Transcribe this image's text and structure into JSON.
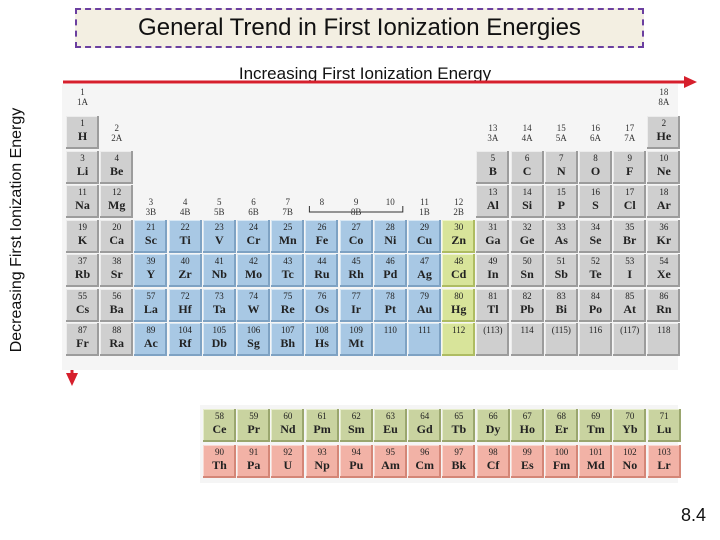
{
  "title": "General Trend in First Ionization Energies",
  "top_label": "Increasing First Ionization Energy",
  "left_label": "Decreasing First Ionization Energy",
  "page_number": "8.4",
  "group_labels": [
    {
      "num": "1",
      "sub": "1A"
    },
    {
      "num": "2",
      "sub": "2A"
    },
    {
      "num": "3",
      "sub": "3B"
    },
    {
      "num": "4",
      "sub": "4B"
    },
    {
      "num": "5",
      "sub": "5B"
    },
    {
      "num": "6",
      "sub": "6B"
    },
    {
      "num": "7",
      "sub": "7B"
    },
    {
      "num": "8",
      "sub": ""
    },
    {
      "num": "9",
      "sub": "8B"
    },
    {
      "num": "10",
      "sub": ""
    },
    {
      "num": "11",
      "sub": "1B"
    },
    {
      "num": "12",
      "sub": "2B"
    },
    {
      "num": "13",
      "sub": "3A"
    },
    {
      "num": "14",
      "sub": "4A"
    },
    {
      "num": "15",
      "sub": "5A"
    },
    {
      "num": "16",
      "sub": "6A"
    },
    {
      "num": "17",
      "sub": "7A"
    },
    {
      "num": "18",
      "sub": "8A"
    }
  ],
  "elements": [
    [
      "1",
      "H"
    ],
    [
      "2",
      "He"
    ],
    [
      "3",
      "Li"
    ],
    [
      "4",
      "Be"
    ],
    [
      "5",
      "B"
    ],
    [
      "6",
      "C"
    ],
    [
      "7",
      "N"
    ],
    [
      "8",
      "O"
    ],
    [
      "9",
      "F"
    ],
    [
      "10",
      "Ne"
    ],
    [
      "11",
      "Na"
    ],
    [
      "12",
      "Mg"
    ],
    [
      "13",
      "Al"
    ],
    [
      "14",
      "Si"
    ],
    [
      "15",
      "P"
    ],
    [
      "16",
      "S"
    ],
    [
      "17",
      "Cl"
    ],
    [
      "18",
      "Ar"
    ],
    [
      "19",
      "K"
    ],
    [
      "20",
      "Ca"
    ],
    [
      "21",
      "Sc"
    ],
    [
      "22",
      "Ti"
    ],
    [
      "23",
      "V"
    ],
    [
      "24",
      "Cr"
    ],
    [
      "25",
      "Mn"
    ],
    [
      "26",
      "Fe"
    ],
    [
      "27",
      "Co"
    ],
    [
      "28",
      "Ni"
    ],
    [
      "29",
      "Cu"
    ],
    [
      "30",
      "Zn"
    ],
    [
      "31",
      "Ga"
    ],
    [
      "32",
      "Ge"
    ],
    [
      "33",
      "As"
    ],
    [
      "34",
      "Se"
    ],
    [
      "35",
      "Br"
    ],
    [
      "36",
      "Kr"
    ],
    [
      "37",
      "Rb"
    ],
    [
      "38",
      "Sr"
    ],
    [
      "39",
      "Y"
    ],
    [
      "40",
      "Zr"
    ],
    [
      "41",
      "Nb"
    ],
    [
      "42",
      "Mo"
    ],
    [
      "43",
      "Tc"
    ],
    [
      "44",
      "Ru"
    ],
    [
      "45",
      "Rh"
    ],
    [
      "46",
      "Pd"
    ],
    [
      "47",
      "Ag"
    ],
    [
      "48",
      "Cd"
    ],
    [
      "49",
      "In"
    ],
    [
      "50",
      "Sn"
    ],
    [
      "51",
      "Sb"
    ],
    [
      "52",
      "Te"
    ],
    [
      "53",
      "I"
    ],
    [
      "54",
      "Xe"
    ],
    [
      "55",
      "Cs"
    ],
    [
      "56",
      "Ba"
    ],
    [
      "57",
      "La"
    ],
    [
      "72",
      "Hf"
    ],
    [
      "73",
      "Ta"
    ],
    [
      "74",
      "W"
    ],
    [
      "75",
      "Re"
    ],
    [
      "76",
      "Os"
    ],
    [
      "77",
      "Ir"
    ],
    [
      "78",
      "Pt"
    ],
    [
      "79",
      "Au"
    ],
    [
      "80",
      "Hg"
    ],
    [
      "81",
      "Tl"
    ],
    [
      "82",
      "Pb"
    ],
    [
      "83",
      "Bi"
    ],
    [
      "84",
      "Po"
    ],
    [
      "85",
      "At"
    ],
    [
      "86",
      "Rn"
    ],
    [
      "87",
      "Fr"
    ],
    [
      "88",
      "Ra"
    ],
    [
      "89",
      "Ac"
    ],
    [
      "104",
      "Rf"
    ],
    [
      "105",
      "Db"
    ],
    [
      "106",
      "Sg"
    ],
    [
      "107",
      "Bh"
    ],
    [
      "108",
      "Hs"
    ],
    [
      "109",
      "Mt"
    ],
    [
      "110",
      ""
    ],
    [
      "111",
      ""
    ],
    [
      "112",
      ""
    ],
    [
      "(113)",
      ""
    ],
    [
      "114",
      ""
    ],
    [
      "(115)",
      ""
    ],
    [
      "116",
      ""
    ],
    [
      "(117)",
      ""
    ],
    [
      "118",
      ""
    ],
    [
      "58",
      "Ce"
    ],
    [
      "59",
      "Pr"
    ],
    [
      "60",
      "Nd"
    ],
    [
      "61",
      "Pm"
    ],
    [
      "62",
      "Sm"
    ],
    [
      "63",
      "Eu"
    ],
    [
      "64",
      "Gd"
    ],
    [
      "65",
      "Tb"
    ],
    [
      "66",
      "Dy"
    ],
    [
      "67",
      "Ho"
    ],
    [
      "68",
      "Er"
    ],
    [
      "69",
      "Tm"
    ],
    [
      "70",
      "Yb"
    ],
    [
      "71",
      "Lu"
    ],
    [
      "90",
      "Th"
    ],
    [
      "91",
      "Pa"
    ],
    [
      "92",
      "U"
    ],
    [
      "93",
      "Np"
    ],
    [
      "94",
      "Pu"
    ],
    [
      "95",
      "Am"
    ],
    [
      "96",
      "Cm"
    ],
    [
      "97",
      "Bk"
    ],
    [
      "98",
      "Cf"
    ],
    [
      "99",
      "Es"
    ],
    [
      "100",
      "Fm"
    ],
    [
      "101",
      "Md"
    ],
    [
      "102",
      "No"
    ],
    [
      "103",
      "Lr"
    ]
  ],
  "colors": {
    "arrow": "#d61f2c",
    "title_border": "#6b3fa0",
    "main_group": "#cfcfcf",
    "transition": "#a8c8e4",
    "group12": "#d8e49a",
    "lanthanide": "#c9d3a0",
    "actinide": "#f2b2a6"
  }
}
